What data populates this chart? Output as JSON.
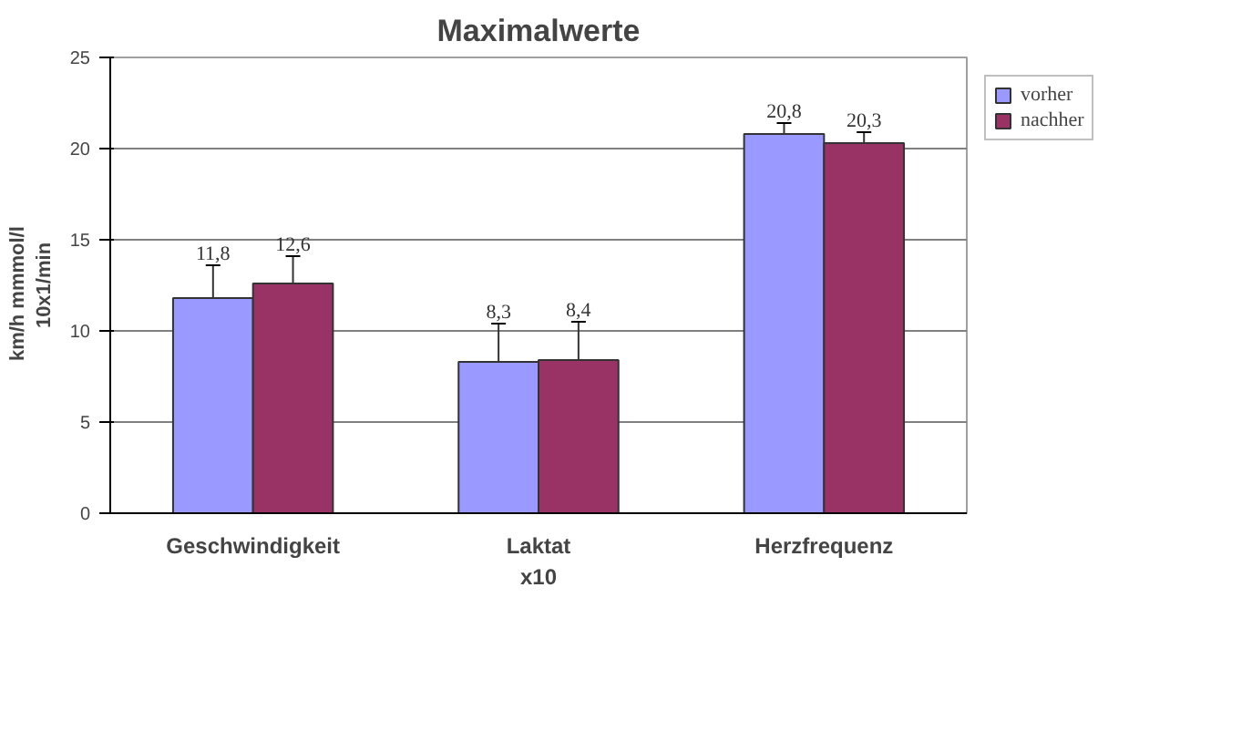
{
  "chart_data": {
    "type": "bar",
    "title": "Maximalwerte",
    "ylabel": "km/h    mmmol/l\n10x1/min",
    "categories": [
      "Geschwindigkeit",
      "Laktat\nx10",
      "Herzfrequenz"
    ],
    "series": [
      {
        "name": "vorher",
        "color": "#9999ff",
        "values": [
          11.8,
          8.3,
          20.8
        ],
        "value_labels": [
          "11,8",
          "8,3",
          "20,8"
        ],
        "errors": [
          1.8,
          2.1,
          0.6
        ]
      },
      {
        "name": "nachher",
        "color": "#993366",
        "values": [
          12.6,
          8.4,
          20.3
        ],
        "value_labels": [
          "12,6",
          "8,4",
          "20,3"
        ],
        "errors": [
          1.5,
          2.1,
          0.6
        ]
      }
    ],
    "ylim": [
      0,
      25
    ],
    "yticks": [
      0,
      5,
      10,
      15,
      20,
      25
    ],
    "grid": "y",
    "legend": "top right"
  }
}
